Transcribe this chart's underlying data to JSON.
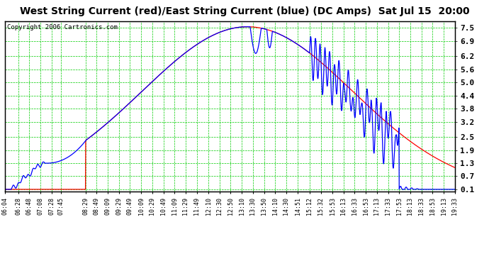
{
  "title": "West String Current (red)/East String Current (blue) (DC Amps)  Sat Jul 15  20:00",
  "copyright": "Copyright 2006 Cartronics.com",
  "ylabel_right": [
    "0.1",
    "0.7",
    "1.3",
    "1.9",
    "2.5",
    "3.2",
    "3.8",
    "4.4",
    "5.0",
    "5.6",
    "6.2",
    "6.9",
    "7.5"
  ],
  "yticks": [
    0.1,
    0.7,
    1.3,
    1.9,
    2.5,
    3.2,
    3.8,
    4.4,
    5.0,
    5.6,
    6.2,
    6.9,
    7.5
  ],
  "ylim": [
    0.0,
    7.8
  ],
  "bg_color": "#ffffff",
  "grid_color": "#00cc00",
  "title_color": "#000000",
  "x_labels": [
    "06:04",
    "06:28",
    "06:48",
    "07:08",
    "07:28",
    "07:45",
    "08:29",
    "08:49",
    "09:09",
    "09:29",
    "09:49",
    "10:09",
    "10:29",
    "10:49",
    "11:09",
    "11:29",
    "11:49",
    "12:10",
    "12:30",
    "12:50",
    "13:10",
    "13:30",
    "13:50",
    "14:10",
    "14:30",
    "14:51",
    "15:12",
    "15:32",
    "15:53",
    "16:13",
    "16:33",
    "16:53",
    "17:13",
    "17:33",
    "17:53",
    "18:13",
    "18:33",
    "18:53",
    "19:13",
    "19:33"
  ]
}
